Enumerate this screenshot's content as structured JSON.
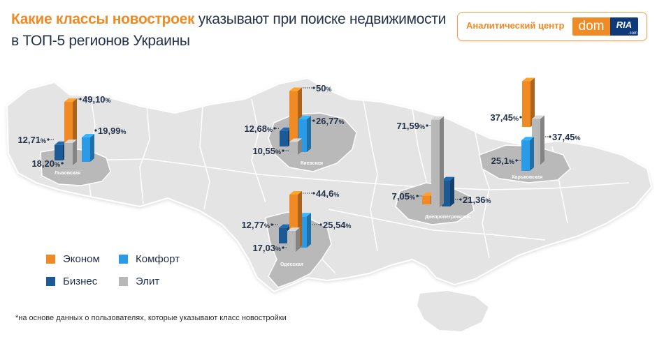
{
  "header": {
    "title_highlight": "Какие классы новостроек",
    "title_rest": " указывают при поиске недвижимости",
    "title_line2": "в ТОП-5 регионов Украины"
  },
  "brand": {
    "label": "Аналитический центр",
    "logo_dom": "dom",
    "logo_ria": "RIA",
    "logo_sub": ".com"
  },
  "footnote": "*на основе данных о пользователях, которые указывают класс новостройки",
  "colors": {
    "econom": "#f08a24",
    "business": "#1b5a94",
    "comfort": "#2b9be8",
    "elite": "#b8b8b8",
    "map": "#e3e3e3",
    "region": "#b8b8b8",
    "text": "#24324a"
  },
  "chart_data": {
    "type": "bar",
    "title": "Какие классы новостроек указывают при поиске недвижимости в ТОП-5 регионов Украины",
    "series_names": [
      "Эконом",
      "Бизнес",
      "Комфорт",
      "Элит"
    ],
    "legend": [
      "Эконом",
      "Комфорт",
      "Бизнес",
      "Элит"
    ],
    "unit": "%",
    "regions": [
      {
        "name": "Львовская",
        "values": {
          "Эконом": 49.1,
          "Бизнес": 12.71,
          "Комфорт": 19.99,
          "Элит": 18.2
        },
        "labels": {
          "Эконом": "49,10",
          "Бизнес": "12,71",
          "Комфорт": "19,99",
          "Элит": "18,20"
        }
      },
      {
        "name": "Киевская",
        "values": {
          "Эконом": 50,
          "Бизнес": 12.68,
          "Комфорт": 26.77,
          "Элит": 10.55
        },
        "labels": {
          "Эконом": "50",
          "Бизнес": "12,68",
          "Комфорт": "26,77",
          "Элит": "10,55"
        }
      },
      {
        "name": "Одесская",
        "values": {
          "Эконом": 44.6,
          "Бизнес": 12.77,
          "Комфорт": 25.54,
          "Элит": 17.03
        },
        "labels": {
          "Эконом": "44,6",
          "Бизнес": "12,77",
          "Комфорт": "25,54",
          "Элит": "17,03"
        }
      },
      {
        "name": "Днепропетровская",
        "values": {
          "Эконом": 7.05,
          "Бизнес": 21.36,
          "Комфорт": null,
          "Элит": 71.59
        },
        "labels": {
          "Эконом": "7,05",
          "Бизнес": "21,36",
          "Комфорт": null,
          "Элит": "71,59"
        }
      },
      {
        "name": "Харьковская",
        "values": {
          "Эконом": 37.45,
          "Бизнес": null,
          "Комфорт": 25.1,
          "Элит": 37.45
        },
        "labels": {
          "Эконом": "37,45",
          "Бизнес": null,
          "Комфорт": "25,1",
          "Элит": "37,45"
        }
      }
    ]
  }
}
